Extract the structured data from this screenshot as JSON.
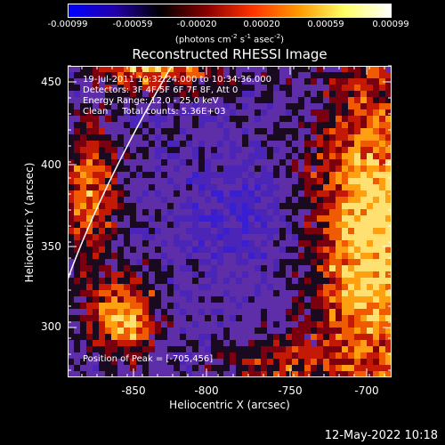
{
  "colorbar": {
    "ticks": [
      "-0.00099",
      "-0.00059",
      "-0.00020",
      "0.00020",
      "0.00059",
      "0.00099"
    ],
    "units": {
      "pre": "(photons cm",
      "e1": "-2",
      "mid1": " s",
      "e2": "-1",
      "mid2": " asec",
      "e3": "-2",
      "post": ")"
    },
    "colors": [
      "#0000ff",
      "#2200aa",
      "#000000",
      "#880000",
      "#ff3300",
      "#ff9900",
      "#ffff66",
      "#ffffff"
    ]
  },
  "title": "Reconstructed RHESSI Image",
  "annotations": {
    "time": "19-Jul-2011 10:32:24.000 to 10:34:36.000",
    "detectors": "Detectors: 3F 4F 5F 6F 7F 8F, Att 0",
    "energy": "Energy Range: 12.0 - 25.0 keV",
    "clean": "Clean     Total counts: 5.36E+03",
    "peak": "Position of Peak = [-705,456]"
  },
  "axes": {
    "xlabel": "Heliocentric X (arcsec)",
    "ylabel": "Heliocentric Y (arcsec)",
    "xticks": [
      "-850",
      "-800",
      "-750",
      "-700"
    ],
    "yticks": [
      "450",
      "400",
      "350",
      "300"
    ]
  },
  "timestamp": "12-May-2022 10:18"
}
